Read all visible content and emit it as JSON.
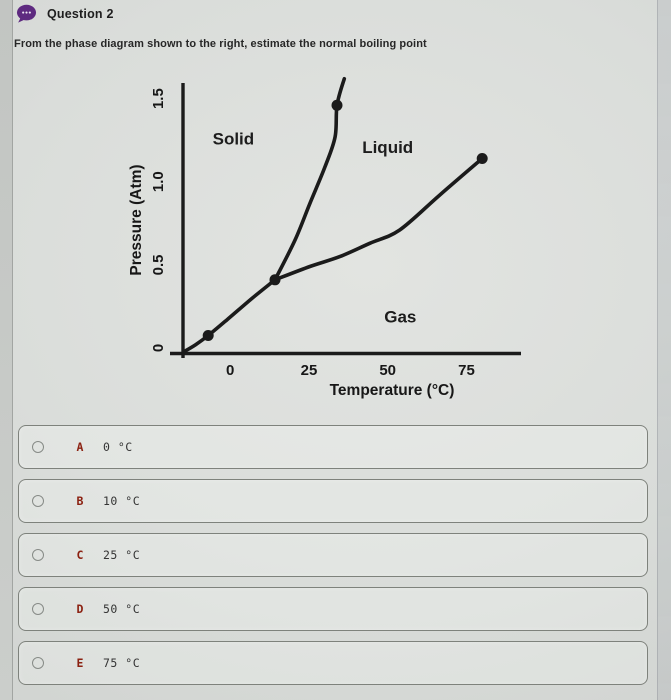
{
  "header": {
    "icon": "chat-bubble-icon",
    "title": "Question 2"
  },
  "prompt": "From the phase diagram shown to the right, estimate the normal boiling point",
  "chart_data": {
    "type": "line",
    "title": "",
    "xlabel": "Temperature (°C)",
    "ylabel": "Pressure (Atm)",
    "x_ticks": [
      "0",
      "25",
      "50",
      "75"
    ],
    "y_ticks": [
      "0",
      "0.5",
      "1.0",
      "1.5"
    ],
    "xlim": [
      -15,
      92
    ],
    "ylim": [
      0,
      1.63
    ],
    "grid": false,
    "legend": false,
    "region_labels": [
      {
        "text": "Solid",
        "x": 1,
        "y": 1.29
      },
      {
        "text": "Liquid",
        "x": 50,
        "y": 1.24
      },
      {
        "text": "Gas",
        "x": 54,
        "y": 0.22
      }
    ],
    "series": [
      {
        "name": "sublimation-curve",
        "points": [
          [
            -14.5,
            0.01
          ],
          [
            -11,
            0.05
          ],
          [
            -7,
            0.105
          ],
          [
            -1,
            0.2
          ],
          [
            7,
            0.33
          ],
          [
            14.2,
            0.44
          ]
        ]
      },
      {
        "name": "fusion-curve",
        "points": [
          [
            14.2,
            0.44
          ],
          [
            20.6,
            0.68
          ],
          [
            25.3,
            0.9
          ],
          [
            30.1,
            1.12
          ],
          [
            33.3,
            1.3
          ],
          [
            33.9,
            1.49
          ],
          [
            36.2,
            1.65
          ]
        ]
      },
      {
        "name": "vaporization-curve",
        "points": [
          [
            14.2,
            0.44
          ],
          [
            25.3,
            0.52
          ],
          [
            34.8,
            0.58
          ],
          [
            44.3,
            0.66
          ],
          [
            53.8,
            0.74
          ],
          [
            66.5,
            0.95
          ],
          [
            80,
            1.17
          ]
        ]
      }
    ],
    "markers": [
      [
        -7,
        0.105
      ],
      [
        14.2,
        0.44
      ],
      [
        33.9,
        1.49
      ],
      [
        80,
        1.17
      ]
    ]
  },
  "options": [
    {
      "letter": "A",
      "label": "0 °C"
    },
    {
      "letter": "B",
      "label": "10 °C"
    },
    {
      "letter": "C",
      "label": "25 °C"
    },
    {
      "letter": "D",
      "label": "50 °C"
    },
    {
      "letter": "E",
      "label": "75 °C"
    }
  ],
  "colors": {
    "option_letter": "#8b2111",
    "bubble_purple": "#5e2a80",
    "chart_line": "#1b1b1b"
  }
}
